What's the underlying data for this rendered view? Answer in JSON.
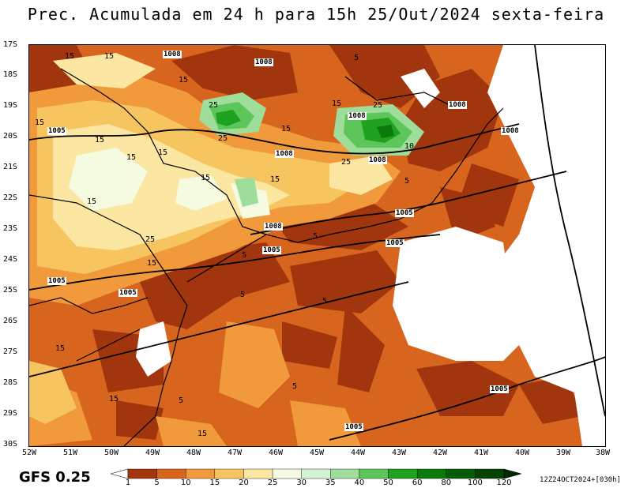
{
  "title": "Prec. Acumulada em 24 h para 15h 25/Out/2024 sexta-feira",
  "model_label": "GFS 0.25",
  "run_stamp": "12Z24OCT2024+[030h]",
  "map": {
    "latitudes": [
      "17S",
      "18S",
      "19S",
      "20S",
      "21S",
      "22S",
      "23S",
      "24S",
      "25S",
      "26S",
      "27S",
      "28S",
      "29S",
      "30S"
    ],
    "longitudes": [
      "52W",
      "51W",
      "50W",
      "49W",
      "48W",
      "47W",
      "46W",
      "45W",
      "44W",
      "43W",
      "42W",
      "41W",
      "40W",
      "39W",
      "38W"
    ],
    "isobar_labels": [
      "1008",
      "1008",
      "1008",
      "1008",
      "1008",
      "1008",
      "1008",
      "1008",
      "1005",
      "1005",
      "1005",
      "1005",
      "1005",
      "1005",
      "1005",
      "1005"
    ],
    "contour_labels": [
      "15",
      "15",
      "5",
      "15",
      "25",
      "15",
      "25",
      "15",
      "15",
      "15",
      "15",
      "25",
      "15",
      "15",
      "25",
      "15",
      "5",
      "15",
      "5",
      "5",
      "5",
      "15",
      "5",
      "15",
      "15",
      "5",
      "15",
      "5",
      "10",
      "25"
    ]
  },
  "colorbar": {
    "ticks": [
      "1",
      "5",
      "10",
      "15",
      "20",
      "25",
      "30",
      "35",
      "40",
      "50",
      "60",
      "80",
      "100",
      "120"
    ],
    "colors": [
      "#ffffff",
      "#a0350e",
      "#d8651e",
      "#f19a3c",
      "#f7c560",
      "#fbe7a1",
      "#f5fbe0",
      "#d4f3d4",
      "#9fdd9a",
      "#5cc65b",
      "#1fa21f",
      "#0a7a0a",
      "#075c07",
      "#044204",
      "#022802"
    ]
  }
}
